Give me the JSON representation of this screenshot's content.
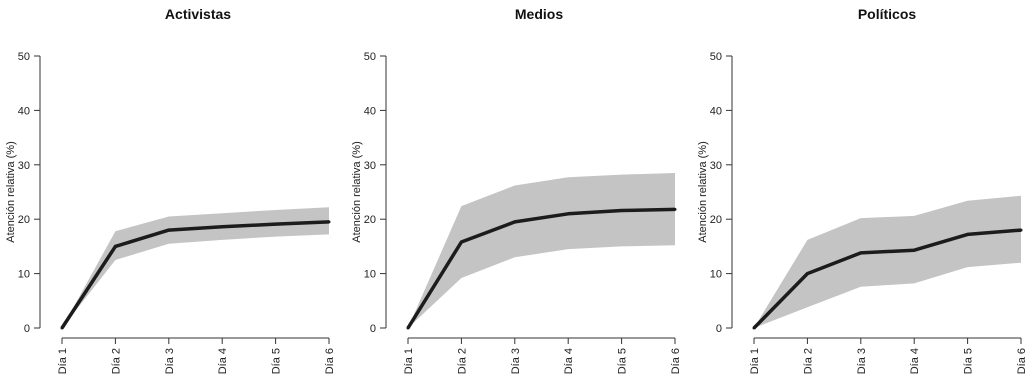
{
  "chart_data": [
    {
      "type": "line",
      "title": "Activistas",
      "xlabel": "",
      "ylabel": "Atención relativa (%)",
      "categories": [
        "Día 1",
        "Día 2",
        "Día 3",
        "Día 4",
        "Día 5",
        "Día 6"
      ],
      "values": [
        0,
        15,
        18,
        18.6,
        19.1,
        19.5
      ],
      "band_upper": [
        0,
        17.8,
        20.5,
        21.1,
        21.7,
        22.2
      ],
      "band_lower": [
        0,
        12.5,
        15.5,
        16.2,
        16.8,
        17.2
      ],
      "ylim": [
        0,
        50
      ],
      "yticks": [
        0,
        10,
        20,
        30,
        40,
        50
      ],
      "line_color": "#1c1c1c",
      "band_color": "#c4c4c4"
    },
    {
      "type": "line",
      "title": "Medios",
      "xlabel": "",
      "ylabel": "Atención relativa (%)",
      "categories": [
        "Día 1",
        "Día 2",
        "Día 3",
        "Día 4",
        "Día 5",
        "Día 6"
      ],
      "values": [
        0,
        15.8,
        19.5,
        21,
        21.6,
        21.8
      ],
      "band_upper": [
        0,
        22.4,
        26.2,
        27.7,
        28.2,
        28.5
      ],
      "band_lower": [
        0,
        9.2,
        13,
        14.5,
        15,
        15.2
      ],
      "ylim": [
        0,
        50
      ],
      "yticks": [
        0,
        10,
        20,
        30,
        40,
        50
      ],
      "line_color": "#1c1c1c",
      "band_color": "#c4c4c4"
    },
    {
      "type": "line",
      "title": "Políticos",
      "xlabel": "",
      "ylabel": "Atención relativa (%)",
      "categories": [
        "Día 1",
        "Día 2",
        "Día 3",
        "Día 4",
        "Día 5",
        "Día 6"
      ],
      "values": [
        0,
        10,
        13.8,
        14.3,
        17.2,
        18
      ],
      "band_upper": [
        0,
        16.2,
        20.2,
        20.6,
        23.4,
        24.3
      ],
      "band_lower": [
        0,
        3.8,
        7.6,
        8.2,
        11.2,
        12
      ],
      "ylim": [
        0,
        50
      ],
      "yticks": [
        0,
        10,
        20,
        30,
        40,
        50
      ],
      "line_color": "#1c1c1c",
      "band_color": "#c4c4c4"
    }
  ]
}
